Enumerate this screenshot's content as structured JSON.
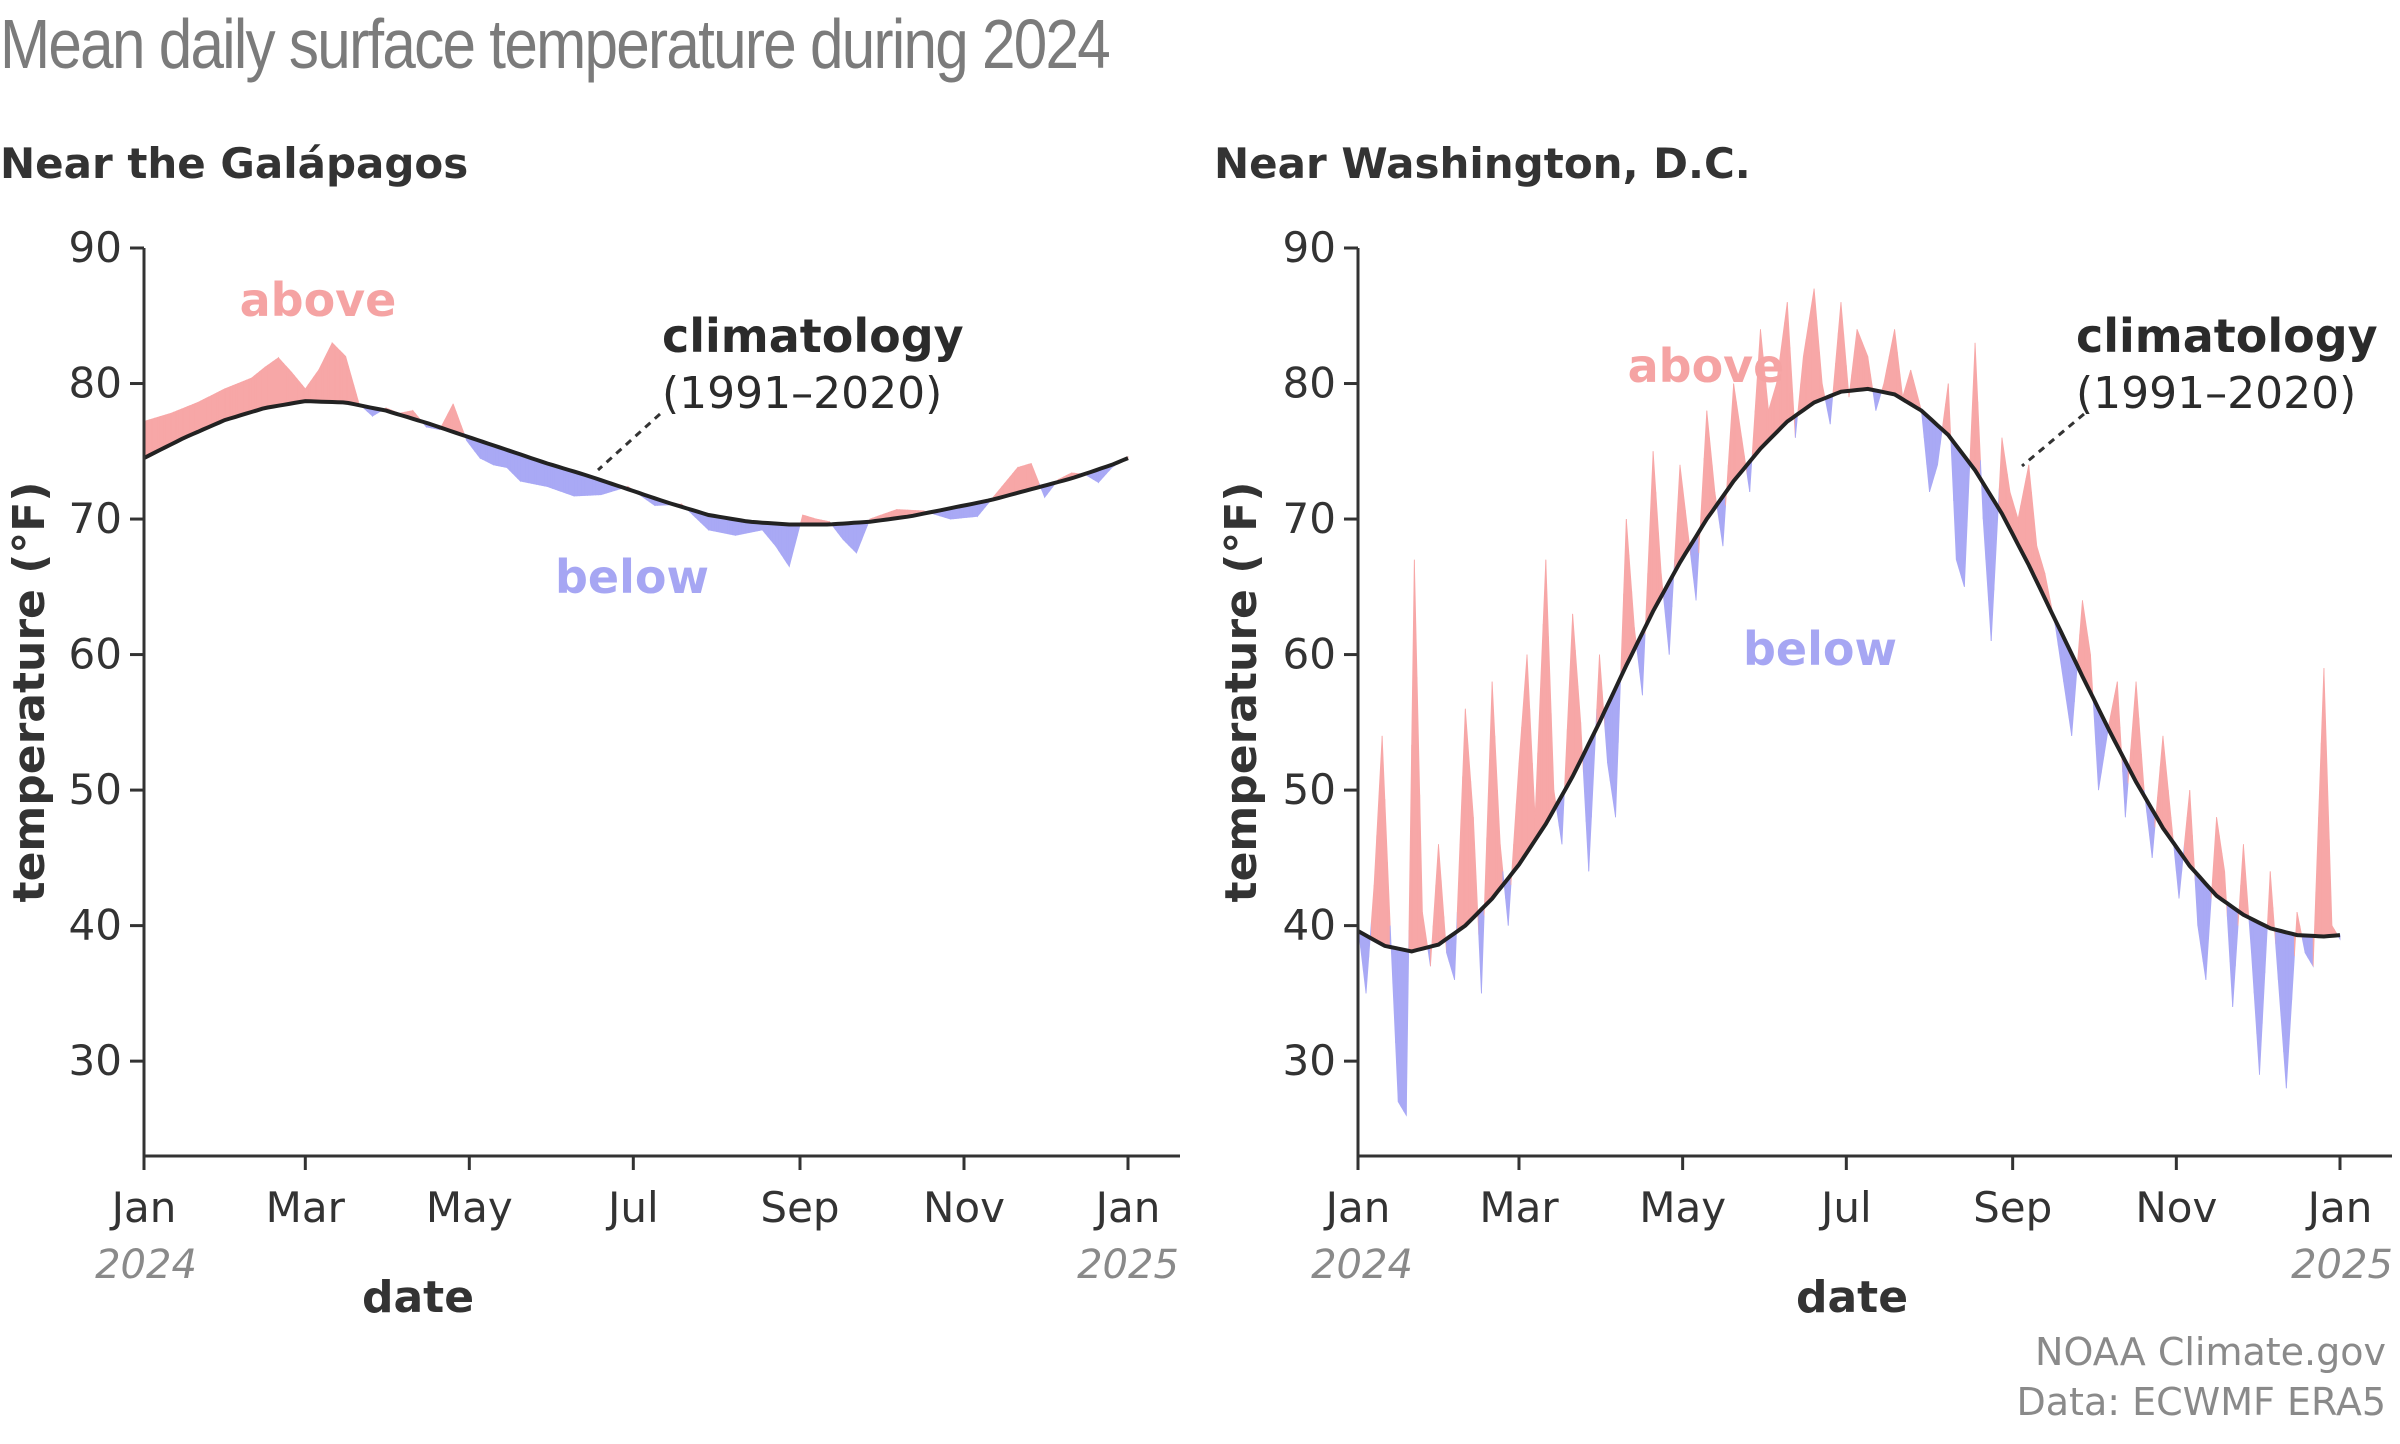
{
  "title": "Mean daily surface temperature during 2024",
  "credits": {
    "line1": "NOAA Climate.gov",
    "line2": "Data: ECWMF ERA5"
  },
  "colors": {
    "above": "#f7a7a7",
    "below": "#a9a9f5",
    "climatology": "#222222",
    "axis": "#333333"
  },
  "chart_data": [
    {
      "type": "area",
      "title": "Near the Galápagos",
      "xlabel": "date",
      "ylabel": "temperature (°F)",
      "ylim": [
        23,
        90
      ],
      "yticks": [
        30,
        40,
        50,
        60,
        70,
        80,
        90
      ],
      "xlim": [
        0,
        366
      ],
      "x_tick_days": [
        0,
        60,
        121,
        182,
        244,
        305,
        366
      ],
      "x_tick_labels": [
        "Jan",
        "Mar",
        "May",
        "Jul",
        "Sep",
        "Nov",
        "Jan"
      ],
      "x_year_labels": [
        "2024",
        "2025"
      ],
      "grid": false,
      "annotations": {
        "above": "above",
        "below": "below",
        "climatology": "climatology",
        "period": "(1991–2020)"
      },
      "series": [
        {
          "name": "climatology",
          "x": [
            0,
            15,
            30,
            45,
            60,
            75,
            90,
            105,
            120,
            135,
            150,
            165,
            180,
            195,
            210,
            225,
            240,
            255,
            270,
            285,
            300,
            315,
            330,
            345,
            360,
            366
          ],
          "values": [
            74.5,
            76.0,
            77.3,
            78.2,
            78.7,
            78.6,
            78.0,
            77.1,
            76.1,
            75.1,
            74.1,
            73.2,
            72.2,
            71.2,
            70.3,
            69.8,
            69.6,
            69.6,
            69.8,
            70.2,
            70.8,
            71.4,
            72.2,
            73.0,
            74.0,
            74.5
          ]
        },
        {
          "name": "daily",
          "x": [
            0,
            10,
            20,
            30,
            40,
            45,
            50,
            55,
            60,
            65,
            70,
            75,
            80,
            85,
            90,
            95,
            100,
            105,
            110,
            115,
            120,
            125,
            130,
            135,
            140,
            150,
            160,
            170,
            180,
            190,
            200,
            210,
            220,
            230,
            235,
            240,
            245,
            250,
            255,
            260,
            265,
            270,
            280,
            290,
            300,
            310,
            320,
            325,
            330,
            335,
            340,
            345,
            350,
            355,
            360,
            366
          ],
          "values": [
            77.2,
            77.8,
            78.6,
            79.6,
            80.4,
            81.2,
            81.9,
            80.8,
            79.6,
            81.0,
            83.0,
            82.0,
            78.5,
            77.6,
            78.2,
            77.8,
            78.0,
            76.8,
            76.6,
            78.5,
            75.8,
            74.5,
            74.0,
            73.8,
            72.8,
            72.4,
            71.7,
            71.8,
            72.4,
            71.0,
            71.1,
            69.2,
            68.8,
            69.2,
            68.0,
            66.5,
            70.3,
            70.0,
            69.8,
            68.5,
            67.5,
            70.0,
            70.7,
            70.6,
            70.0,
            70.2,
            72.6,
            73.8,
            74.1,
            71.6,
            72.9,
            73.4,
            73.3,
            72.7,
            73.8,
            74.6
          ]
        }
      ]
    },
    {
      "type": "area",
      "title": "Near Washington, D.C.",
      "xlabel": "date",
      "ylabel": "temperature (°F)",
      "ylim": [
        23,
        90
      ],
      "yticks": [
        30,
        40,
        50,
        60,
        70,
        80,
        90
      ],
      "xlim": [
        0,
        366
      ],
      "x_tick_days": [
        0,
        60,
        121,
        182,
        244,
        305,
        366
      ],
      "x_tick_labels": [
        "Jan",
        "Mar",
        "May",
        "Jul",
        "Sep",
        "Nov",
        "Jan"
      ],
      "x_year_labels": [
        "2024",
        "2025"
      ],
      "grid": false,
      "annotations": {
        "above": "above",
        "below": "below",
        "climatology": "climatology",
        "period": "(1991–2020)"
      },
      "series": [
        {
          "name": "climatology",
          "x": [
            0,
            10,
            20,
            30,
            40,
            50,
            60,
            70,
            80,
            90,
            100,
            110,
            120,
            130,
            140,
            150,
            160,
            170,
            180,
            190,
            200,
            210,
            220,
            230,
            240,
            250,
            260,
            270,
            280,
            290,
            300,
            310,
            320,
            330,
            340,
            350,
            360,
            366
          ],
          "values": [
            39.6,
            38.5,
            38.1,
            38.6,
            40.0,
            42.0,
            44.5,
            47.5,
            51.0,
            55.0,
            59.2,
            63.2,
            66.8,
            70.0,
            72.8,
            75.2,
            77.2,
            78.6,
            79.4,
            79.6,
            79.2,
            78.0,
            76.2,
            73.6,
            70.4,
            66.6,
            62.5,
            58.4,
            54.4,
            50.6,
            47.2,
            44.4,
            42.2,
            40.8,
            39.8,
            39.3,
            39.2,
            39.3
          ]
        },
        {
          "name": "daily",
          "x": [
            0,
            3,
            6,
            9,
            12,
            15,
            18,
            21,
            24,
            27,
            30,
            33,
            36,
            40,
            43,
            46,
            50,
            53,
            56,
            60,
            63,
            66,
            70,
            73,
            76,
            80,
            83,
            86,
            90,
            93,
            96,
            100,
            103,
            106,
            110,
            113,
            116,
            120,
            123,
            126,
            130,
            133,
            136,
            140,
            143,
            146,
            150,
            153,
            156,
            160,
            163,
            166,
            170,
            173,
            176,
            180,
            183,
            186,
            190,
            193,
            196,
            200,
            203,
            206,
            210,
            213,
            216,
            220,
            223,
            226,
            230,
            233,
            236,
            240,
            243,
            246,
            250,
            253,
            256,
            260,
            263,
            266,
            270,
            273,
            276,
            280,
            283,
            286,
            290,
            293,
            296,
            300,
            303,
            306,
            310,
            313,
            316,
            320,
            323,
            326,
            330,
            333,
            336,
            340,
            343,
            346,
            350,
            353,
            356,
            360,
            363,
            366
          ],
          "values": [
            40,
            35,
            43,
            54,
            40,
            27,
            26,
            67,
            41,
            37,
            46,
            38,
            36,
            56,
            48,
            35,
            58,
            46,
            40,
            52,
            60,
            48,
            67,
            50,
            46,
            63,
            55,
            44,
            60,
            52,
            48,
            70,
            62,
            57,
            75,
            66,
            60,
            74,
            69,
            64,
            78,
            72,
            68,
            80,
            76,
            72,
            84,
            78,
            80,
            86,
            76,
            82,
            87,
            80,
            77,
            86,
            79,
            84,
            82,
            78,
            80,
            84,
            79,
            81,
            78,
            72,
            74,
            80,
            67,
            65,
            83,
            70,
            61,
            76,
            72,
            70,
            74,
            68,
            66,
            62,
            58,
            54,
            64,
            60,
            50,
            55,
            58,
            48,
            58,
            50,
            45,
            54,
            48,
            42,
            50,
            40,
            36,
            48,
            44,
            34,
            46,
            38,
            29,
            44,
            36,
            28,
            41,
            38,
            37,
            59,
            40,
            39
          ]
        }
      ]
    }
  ]
}
